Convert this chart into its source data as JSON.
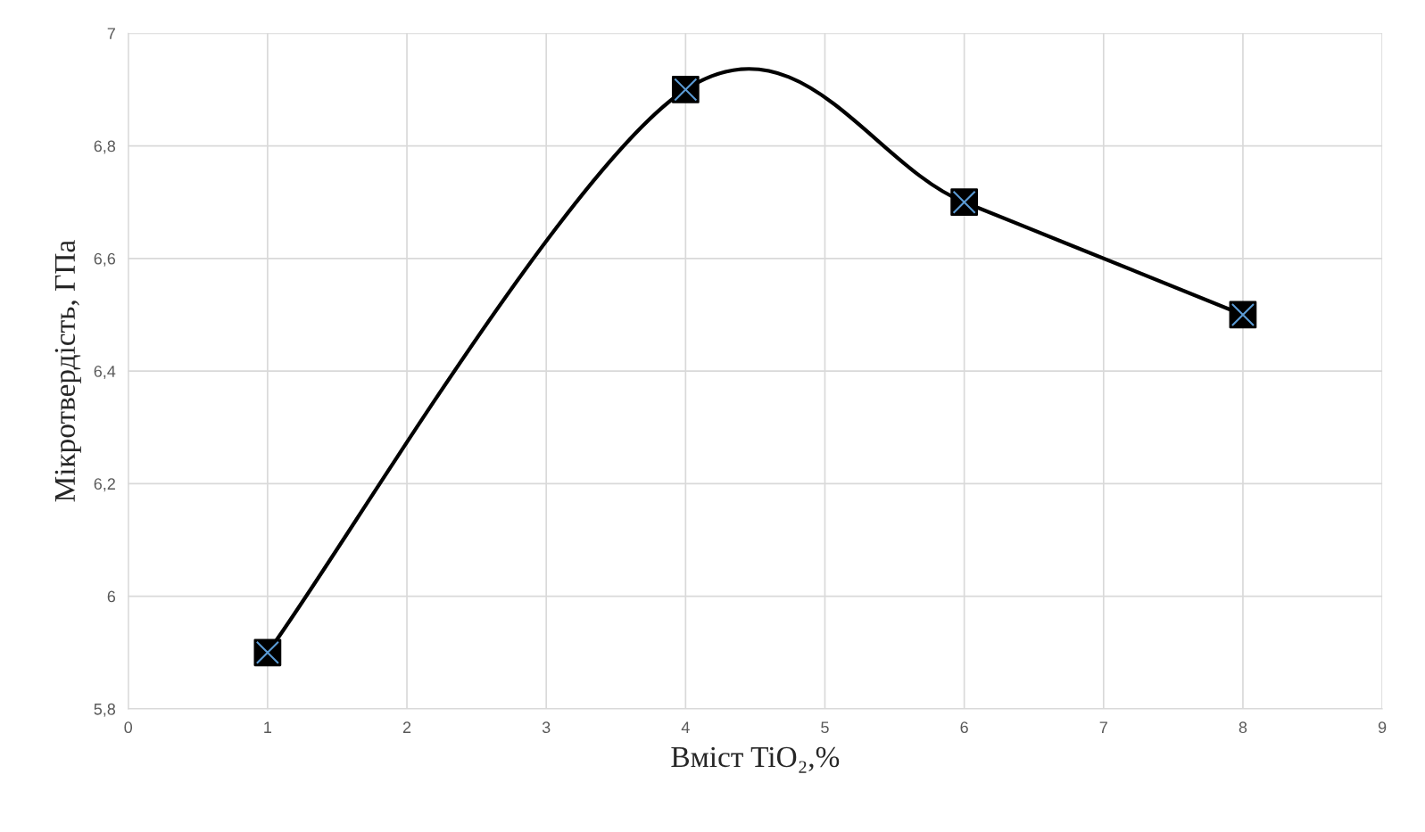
{
  "chart_data": {
    "type": "line",
    "xlabel": "Вміст TiO₂,%",
    "ylabel": "Мікротвердість, ГПа",
    "x": [
      1,
      4,
      6,
      8
    ],
    "series": [
      {
        "color": "#000000",
        "values": [
          5.9,
          6.9,
          6.7,
          6.5
        ]
      }
    ],
    "xlim": [
      0,
      9
    ],
    "xticks": [
      0,
      1,
      2,
      3,
      4,
      5,
      6,
      7,
      8,
      9
    ],
    "ylim": [
      5.8,
      7
    ],
    "yticks": [
      {
        "value": 5.8,
        "label": "5,8"
      },
      6,
      {
        "value": 6.2,
        "label": "6,2"
      },
      {
        "value": 6.4,
        "label": "6,4"
      },
      {
        "value": 6.6,
        "label": "6,6"
      },
      {
        "value": 6.8,
        "label": "6,8"
      },
      7
    ],
    "grid": true,
    "marker": "square",
    "line_style": "solid"
  }
}
